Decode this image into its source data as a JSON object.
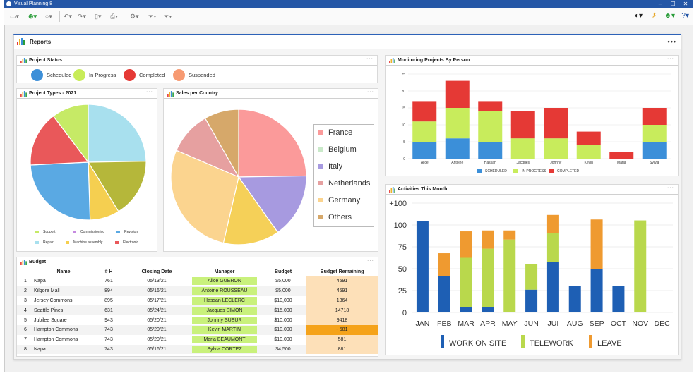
{
  "window": {
    "title": "Visual Planning 8",
    "controls": [
      "–",
      "☐",
      "✕"
    ]
  },
  "reports": {
    "tab_label": "Reports",
    "menu": "•••"
  },
  "project_status": {
    "title": "Project Status",
    "items": [
      {
        "label": "Scheduled",
        "color": "#3d8fd8"
      },
      {
        "label": "In Progress",
        "color": "#c8ec58"
      },
      {
        "label": "Completed",
        "color": "#e53935"
      },
      {
        "label": "Suspended",
        "color": "#f79a72"
      }
    ]
  },
  "project_types": {
    "title": "Project Types - 2021",
    "legend": [
      "Support",
      "Commissioning",
      "Revision",
      "Repair",
      "Machine assembly",
      "Electronic"
    ]
  },
  "sales": {
    "title": "Sales per Country",
    "legend": [
      "France",
      "Belgium",
      "Italy",
      "Netherlands",
      "Germany",
      "Others"
    ]
  },
  "monitoring": {
    "title": "Monitoring Projects By Person"
  },
  "activities": {
    "title": "Activities This Month"
  },
  "budget": {
    "title": "Budget",
    "columns": [
      "",
      "Name",
      "# H",
      "Closing Date",
      "Manager",
      "Budget",
      "Budget Remaining"
    ],
    "rows": [
      {
        "n": "1",
        "name": "Napa",
        "h": "761",
        "date": "05/13/21",
        "manager": "Alice GUERON",
        "budget": "$5,000",
        "remaining": "4591"
      },
      {
        "n": "2",
        "name": "Kilgore Mall",
        "h": "894",
        "date": "05/16/21",
        "manager": "Antoine ROUSSEAU",
        "budget": "$5,000",
        "remaining": "4591"
      },
      {
        "n": "3",
        "name": "Jersey Commons",
        "h": "895",
        "date": "05/17/21",
        "manager": "Hassan LECLERC",
        "budget": "$10,000",
        "remaining": "1364"
      },
      {
        "n": "4",
        "name": "Seattle Pines",
        "h": "631",
        "date": "05/24/21",
        "manager": "Jacques SIMON",
        "budget": "$15,000",
        "remaining": "14718"
      },
      {
        "n": "5",
        "name": "Jubilee Square",
        "h": "943",
        "date": "05/20/21",
        "manager": "Johnny SUEUR",
        "budget": "$10,000",
        "remaining": "9418"
      },
      {
        "n": "6",
        "name": "Hampton Commons",
        "h": "743",
        "date": "05/20/21",
        "manager": "Kevin MARTIN",
        "budget": "$10,000",
        "remaining": "- 581"
      },
      {
        "n": "7",
        "name": "Hampton Commons",
        "h": "743",
        "date": "05/20/21",
        "manager": "Maria BEAUMONT",
        "budget": "$10,000",
        "remaining": "581"
      },
      {
        "n": "8",
        "name": "Napa",
        "h": "743",
        "date": "05/16/21",
        "manager": "Sylvia CORTEZ",
        "budget": "$4,500",
        "remaining": "881"
      }
    ]
  },
  "chart_data": [
    {
      "type": "pie",
      "title": "Project Types - 2021",
      "labels": [
        "Support",
        "Commissioning",
        "Revision",
        "Repair",
        "Machine assembly",
        "Electronic"
      ],
      "values": [
        24,
        16,
        8,
        24,
        15,
        10
      ],
      "colors": [
        "#a8e0ee",
        "#b5b73a",
        "#f5cf50",
        "#5aa9e3",
        "#e9585a",
        "#c6ea66"
      ]
    },
    {
      "type": "pie",
      "title": "Sales per Country",
      "labels": [
        "France",
        "Belgium",
        "Italy",
        "Netherlands",
        "Germany",
        "Others"
      ],
      "values": [
        24,
        15,
        13,
        27,
        10,
        8
      ],
      "colors": [
        "#fb9a9a",
        "#a79ae0",
        "#f5d058",
        "#fbd48f",
        "#e6a0a0",
        "#d6a86a"
      ]
    },
    {
      "type": "bar",
      "title": "Monitoring Projects By Person",
      "stacked": true,
      "categories": [
        "Alice",
        "Antoine",
        "Hassan",
        "Jacques",
        "Johnny",
        "Kevin",
        "Maria",
        "Sylvia"
      ],
      "series": [
        {
          "name": "SCHEDULED",
          "color": "#3b8fd9",
          "values": [
            5,
            6,
            5,
            0,
            0,
            0,
            0,
            5
          ]
        },
        {
          "name": "IN PROGRESS",
          "color": "#c8ec5c",
          "values": [
            6,
            9,
            9,
            6,
            6,
            4,
            0,
            5
          ]
        },
        {
          "name": "COMPLETED",
          "color": "#e53935",
          "values": [
            6,
            8,
            3,
            8,
            9,
            4,
            2,
            5
          ]
        }
      ],
      "y_ticks": [
        0,
        5,
        10,
        15,
        20,
        25
      ],
      "ylim": [
        0,
        25
      ]
    },
    {
      "type": "bar",
      "title": "Activities This Month",
      "stacked": true,
      "categories": [
        "JAN",
        "FEB",
        "MAR",
        "APR",
        "MAY",
        "JUN",
        "JUI",
        "AUG",
        "SEP",
        "OCT",
        "NOV",
        "DEC"
      ],
      "series": [
        {
          "name": "WORK ON SITE",
          "color": "#1e5fb4",
          "values": [
            100,
            40,
            6,
            6,
            0,
            25,
            55,
            29,
            48,
            29,
            0,
            0
          ]
        },
        {
          "name": "TELEWORK",
          "color": "#b9d84c",
          "values": [
            0,
            0,
            54,
            64,
            80,
            28,
            32,
            0,
            0,
            0,
            101,
            0
          ]
        },
        {
          "name": "LEAVE",
          "color": "#ef9a30",
          "values": [
            0,
            25,
            29,
            20,
            10,
            0,
            20,
            0,
            54,
            0,
            0,
            0
          ]
        }
      ],
      "y_ticks": [
        "0",
        "25",
        "50",
        "75",
        "100",
        "+100"
      ],
      "ylim": [
        0,
        120
      ]
    }
  ]
}
